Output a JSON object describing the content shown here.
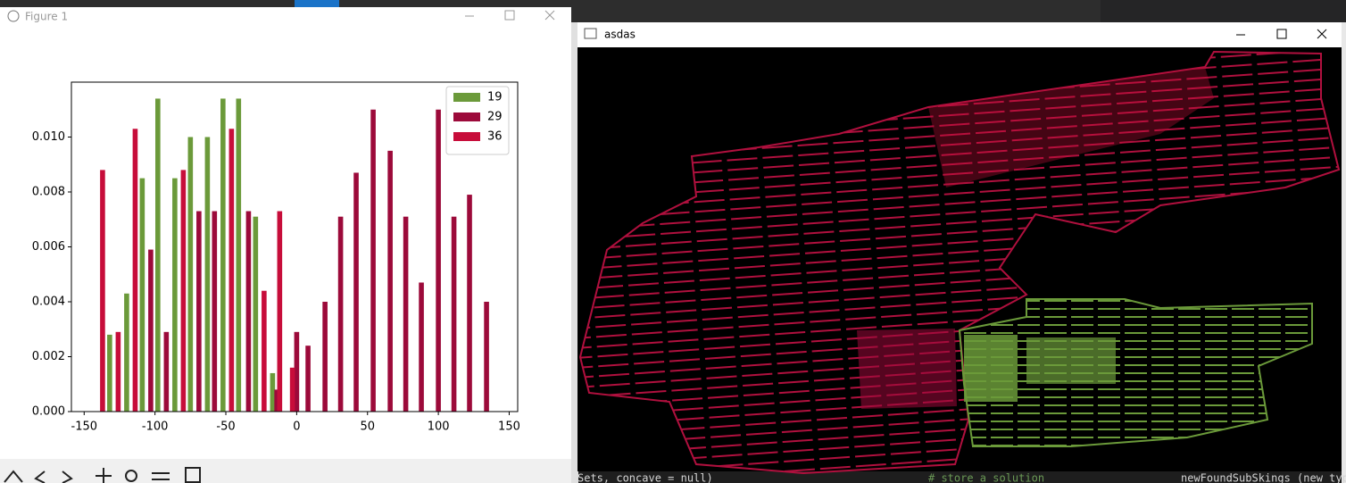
{
  "windows": {
    "figure": {
      "title": "Figure 1",
      "chart_data": {
        "type": "bar",
        "series": [
          {
            "name": "19",
            "color": "#6b9a3a",
            "x": [
              -132,
              -120,
              -109,
              -98,
              -86,
              -75,
              -63,
              -52,
              -41,
              -29,
              -17
            ],
            "values": [
              0.0028,
              0.0043,
              0.0085,
              0.0114,
              0.0085,
              0.01,
              0.01,
              0.0114,
              0.0114,
              0.0071,
              0.0014
            ]
          },
          {
            "name": "29",
            "color": "#9c0a3a",
            "x": [
              -103,
              -92,
              -69,
              -58,
              -34,
              -14,
              0,
              8,
              20,
              31,
              42,
              54,
              66,
              77,
              88,
              100,
              111,
              122,
              134
            ],
            "values": [
              0.0059,
              0.0029,
              0.0073,
              0.0073,
              0.0073,
              0.0008,
              0.0029,
              0.0024,
              0.004,
              0.0071,
              0.0087,
              0.011,
              0.0095,
              0.0071,
              0.0047,
              0.011,
              0.0071,
              0.0079,
              0.004
            ]
          },
          {
            "name": "36",
            "color": "#c70d3a",
            "x": [
              -137,
              -126,
              -114,
              -80,
              -46,
              -23,
              -12,
              -3
            ],
            "values": [
              0.0088,
              0.0029,
              0.0103,
              0.0088,
              0.0103,
              0.0044,
              0.0073,
              0.0016
            ]
          }
        ],
        "xlim": [
          -159,
          156
        ],
        "ylim": [
          0,
          0.012
        ],
        "xticks": [
          -150,
          -100,
          -50,
          0,
          50,
          100,
          150
        ],
        "yticks": [
          {
            "value": 0,
            "label": "0.000"
          },
          {
            "value": 0.002,
            "label": "0.002"
          },
          {
            "value": 0.004,
            "label": "0.004"
          },
          {
            "value": 0.006,
            "label": "0.006"
          },
          {
            "value": 0.008,
            "label": "0.008"
          },
          {
            "value": 0.01,
            "label": "0.010"
          }
        ],
        "legend": "upper right"
      }
    },
    "viewer": {
      "title": "asdas"
    }
  },
  "background": {
    "code": [
      "Sets, concave = null)",
      "# store a solution",
      "newFoundSubSkings (new type"
    ]
  }
}
